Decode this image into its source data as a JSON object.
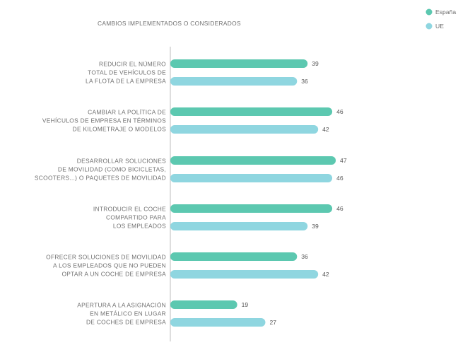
{
  "chart_data": {
    "type": "bar",
    "orientation": "horizontal",
    "title": "CAMBIOS IMPLEMENTADOS O CONSIDERADOS",
    "categories": [
      [
        "REDUCIR EL NÚMERO",
        "TOTAL DE VEHÍCULOS DE",
        "LA FLOTA DE LA EMPRESA"
      ],
      [
        "CAMBIAR LA POLÍTICA DE",
        "VEHÍCULOS DE EMPRESA EN TÉRMINOS",
        "DE KILOMETRAJE O MODELOS"
      ],
      [
        "DESARROLLAR SOLUCIONES",
        "DE MOVILIDAD (COMO BICICLETAS,",
        "SCOOTERS...) O PAQUETES DE MOVILIDAD"
      ],
      [
        "INTRODUCIR EL COCHE",
        "COMPARTIDO PARA",
        "LOS EMPLEADOS"
      ],
      [
        "OFRECER SOLUCIONES DE MOVILIDAD",
        "A LOS EMPLEADOS QUE NO PUEDEN",
        "OPTAR A UN COCHE DE EMPRESA"
      ],
      [
        "APERTURA A LA ASIGNACIÓN",
        "EN METÁLICO EN LUGAR",
        "DE COCHES DE EMPRESA"
      ]
    ],
    "series": [
      {
        "name": "España",
        "color": "#5cc8b0",
        "values": [
          39,
          46,
          47,
          46,
          36,
          19
        ]
      },
      {
        "name": "UE",
        "color": "#8fd6e0",
        "values": [
          36,
          42,
          46,
          39,
          42,
          27
        ]
      }
    ],
    "xlim": [
      0,
      50
    ],
    "grid": false,
    "legend_position": "top-right",
    "axis_color": "#bdbdbd"
  }
}
